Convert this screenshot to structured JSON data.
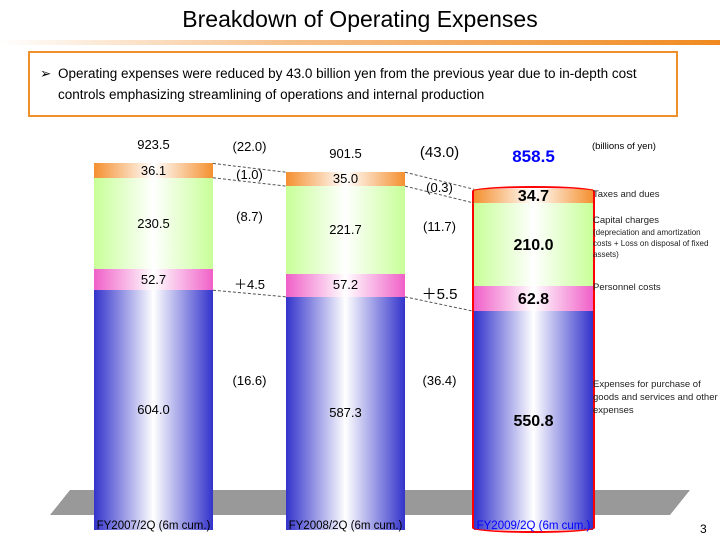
{
  "title": "Breakdown of Operating Expenses",
  "note": {
    "bullet": "➢",
    "text": "Operating expenses were reduced by 43.0 billion yen from the previous year due to in-depth cost controls emphasizing streamlining of operations and internal production"
  },
  "page_number": "3",
  "chart_data": {
    "type": "stacked-bar",
    "unit_label": "(billions of yen)",
    "categories": [
      "FY2007/2Q (6m cum.)",
      "FY2008/2Q (6m cum.)",
      "FY2009/2Q (6m cum.)"
    ],
    "totals": [
      "923.5",
      "901.5",
      "858.5"
    ],
    "series": [
      {
        "name": "Expenses for purchase of goods and services and other expenses",
        "color": "#3333cc",
        "values": [
          604.0,
          587.3,
          550.8
        ],
        "labels": [
          "604.0",
          "587.3",
          "550.8"
        ]
      },
      {
        "name": "Personnel costs",
        "color": "#f060c8",
        "values": [
          52.7,
          57.2,
          62.8
        ],
        "labels": [
          "52.7",
          "57.2",
          "62.8"
        ]
      },
      {
        "name": "Capital charges",
        "sub": "(depreciation and amortization costs + Loss on disposal of fixed assets)",
        "color": "#c8ff98",
        "values": [
          230.5,
          221.7,
          210.0
        ],
        "labels": [
          "230.5",
          "221.7",
          "210.0"
        ]
      },
      {
        "name": "Taxes and dues",
        "color": "#f49030",
        "values": [
          36.1,
          35.0,
          34.7
        ],
        "labels": [
          "36.1",
          "35.0",
          "34.7"
        ]
      }
    ],
    "changes": [
      {
        "total": "(22.0)",
        "taxes": "(1.0)",
        "capital": "(8.7)",
        "personnel": "＋4.5",
        "expenses": "(16.6)"
      },
      {
        "total": "(43.0)",
        "taxes": "(0.3)",
        "capital": "(11.7)",
        "personnel": "＋5.5",
        "expenses": "(36.4)"
      }
    ],
    "highlight_color": "#ff0000",
    "highlight_text_color": "#0000ff"
  }
}
